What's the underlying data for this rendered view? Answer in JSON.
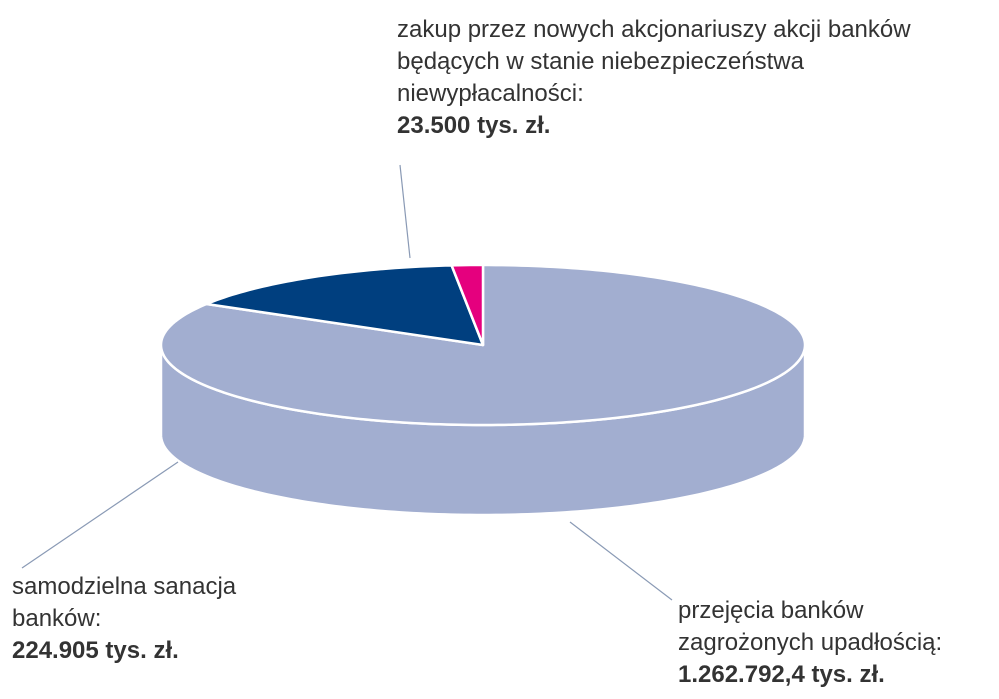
{
  "chart_data": {
    "type": "pie3d",
    "categories": [
      "przejęcia banków zagrożonych upadłością:",
      "samodzielna sanacja banków:",
      "zakup przez nowych akcjonariuszy akcji banków będących w stanie niebezpieczeństwa niewypłacalności:"
    ],
    "values": [
      1262792.4,
      224905,
      23500
    ],
    "value_labels": [
      "1.262.792,4 tys. zł.",
      "224.905 tys. zł.",
      "23.500 tys. zł."
    ],
    "colors": [
      "#a2aed0",
      "#003f7f",
      "#e5007e"
    ]
  }
}
